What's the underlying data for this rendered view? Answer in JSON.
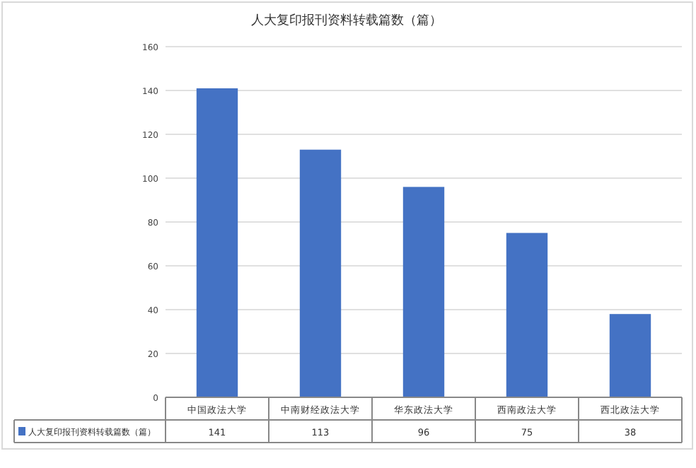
{
  "chart_data": {
    "type": "bar",
    "title": "人大复印报刊资料转载篇数（篇）",
    "categories": [
      "中国政法大学",
      "中南财经政法大学",
      "华东政法大学",
      "西南政法大学",
      "西北政法大学"
    ],
    "series": [
      {
        "name": "人大复印报刊资料转载篇数（篇）",
        "color": "#4472c4",
        "values": [
          141,
          113,
          96,
          75,
          38
        ]
      }
    ],
    "ylim": [
      0,
      160
    ],
    "yticks": [
      0,
      20,
      40,
      60,
      80,
      100,
      120,
      140,
      160
    ],
    "grid": "y",
    "data_labels": true,
    "legend": "bottom left"
  }
}
